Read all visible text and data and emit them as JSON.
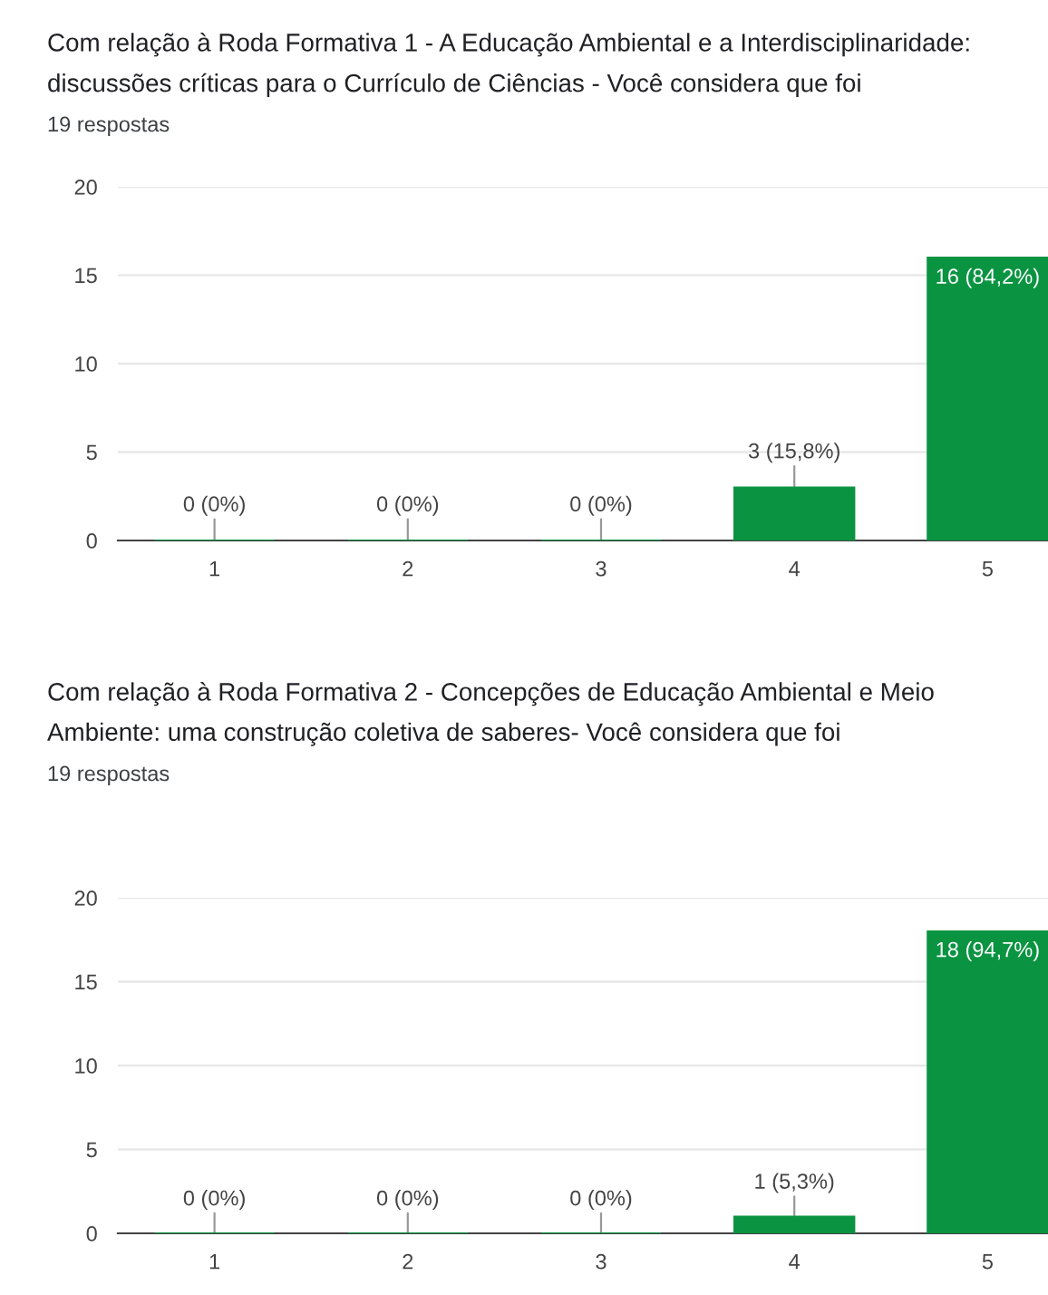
{
  "chart_data": [
    {
      "type": "bar",
      "title": "Com relação à Roda Formativa 1 - A Educação Ambiental e a Interdisciplinaridade: discussões críticas para o Currículo de Ciências - Você considera que foi",
      "subtitle": "19 respostas",
      "categories": [
        "1",
        "2",
        "3",
        "4",
        "5"
      ],
      "values": [
        0,
        0,
        0,
        3,
        16
      ],
      "color": "#0a9441",
      "value_labels": [
        "0 (0%)",
        "0 (0%)",
        "0 (0%)",
        "3 (15,8%)",
        "16 (84,2%)"
      ],
      "ylim": [
        0,
        20
      ],
      "yticks": [
        0,
        5,
        10,
        15,
        20
      ],
      "grid": "y"
    },
    {
      "type": "bar",
      "title": "Com relação à Roda Formativa 2 - Concepções de Educação Ambiental e Meio Ambiente: uma construção coletiva de saberes- Você considera que foi",
      "subtitle": "19 respostas",
      "categories": [
        "1",
        "2",
        "3",
        "4",
        "5"
      ],
      "values": [
        0,
        0,
        0,
        1,
        18
      ],
      "color": "#0a9441",
      "value_labels": [
        "0 (0%)",
        "0 (0%)",
        "0 (0%)",
        "1 (5,3%)",
        "18 (94,7%)"
      ],
      "ylim": [
        0,
        20
      ],
      "yticks": [
        0,
        5,
        10,
        15,
        20
      ],
      "grid": "y"
    }
  ]
}
